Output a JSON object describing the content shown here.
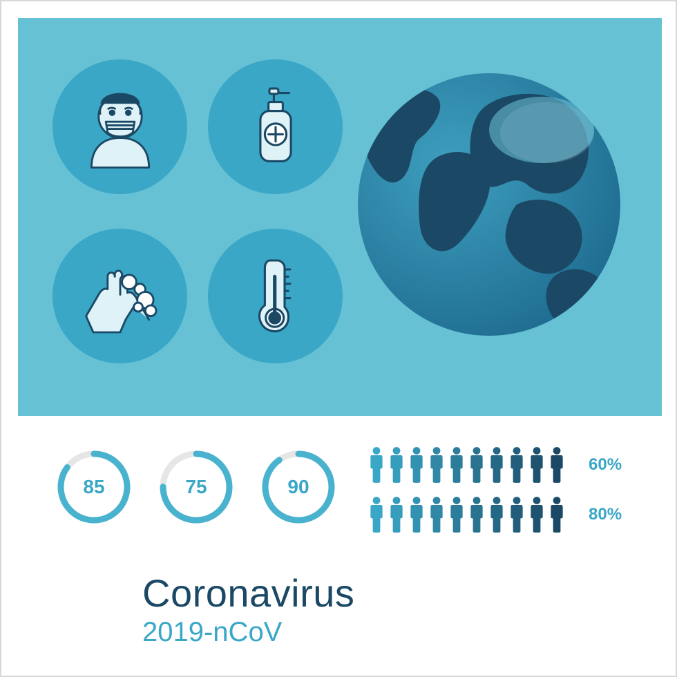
{
  "colors": {
    "panel_bg": "#66c1d5",
    "circle_bg": "#3aa7c7",
    "accent": "#3aa7c7",
    "ring_track": "#e6e6e6",
    "ring_fill": "#49b3cf",
    "title": "#1b4965",
    "icon_stroke": "#1b4965",
    "icon_fill": "#dff2f7",
    "globe_ocean_light": "#3e9fbf",
    "globe_ocean_dark": "#1e6b8f",
    "globe_land": "#1b4965",
    "people_light": "#3aa7c7",
    "people_dark": "#1b4965"
  },
  "icons": [
    {
      "name": "masked-person-icon"
    },
    {
      "name": "sanitizer-icon"
    },
    {
      "name": "hand-wash-icon"
    },
    {
      "name": "thermometer-icon"
    }
  ],
  "rings": [
    {
      "value": 85,
      "percent": 85
    },
    {
      "value": 75,
      "percent": 75
    },
    {
      "value": 90,
      "percent": 90
    }
  ],
  "people_rows": [
    {
      "count": 10,
      "dark_split": 6,
      "percent_label": "60%"
    },
    {
      "count": 10,
      "dark_split": 8,
      "percent_label": "80%"
    }
  ],
  "title": {
    "main": "Coronavirus",
    "sub": "2019-nCoV"
  }
}
